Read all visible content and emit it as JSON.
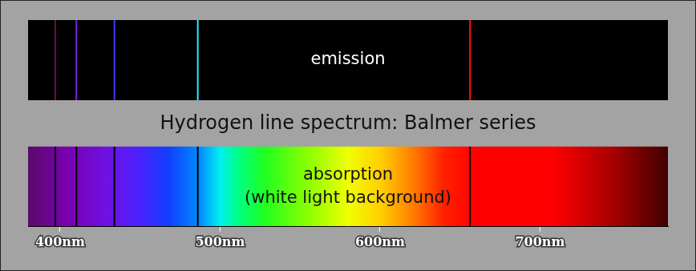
{
  "chart_data": [
    {
      "type": "spectrum",
      "annotations": [
        "emission"
      ],
      "x": [
        397.0,
        410.2,
        434.0,
        486.1,
        656.3
      ],
      "colors": [
        "#6b0f4a",
        "#7a22e8",
        "#3b3bff",
        "#1ef0ff",
        "#ff1010"
      ],
      "xlim": [
        380,
        780
      ],
      "tick_labels": false,
      "grid": false
    },
    {
      "type": "spectrum",
      "title": "Hydrogen line spectrum: Balmer series",
      "annotations": [
        "absorption",
        "(white light background)"
      ],
      "x": [
        397.0,
        410.2,
        434.0,
        486.1,
        656.3
      ],
      "color": "#000000",
      "xlim": [
        380,
        780
      ],
      "xticks": [
        {
          "value": 400,
          "label": "400nm"
        },
        {
          "value": 500,
          "label": "500nm"
        },
        {
          "value": 600,
          "label": "600nm"
        },
        {
          "value": 700,
          "label": "700nm"
        }
      ],
      "grid": false
    }
  ]
}
